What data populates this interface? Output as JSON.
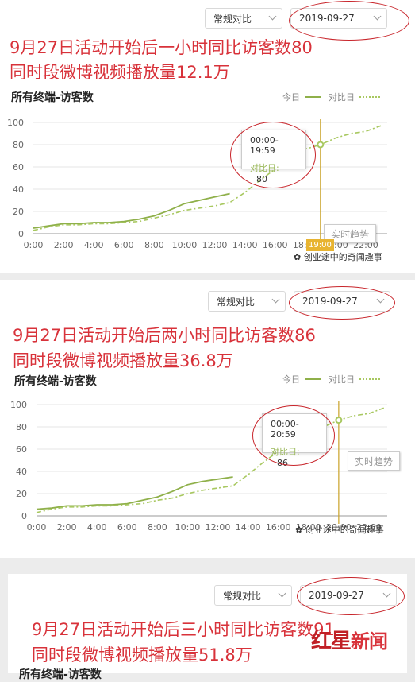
{
  "panels": [
    {
      "compare_select": "常规对比",
      "date_select": "2019-09-27",
      "headline1": "9月27日活动开始后一小时同比访客数80",
      "headline2": "同时段微博视频播放量12.1万",
      "chart_title": "所有终端-访客数",
      "legend_today": "今日",
      "legend_compare": "对比日",
      "tooltip_time": "00:00-19:59",
      "tooltip_label": "对比日:",
      "tooltip_value": "80",
      "realtime_button": "实时趋势",
      "cursor_label": "19:00",
      "watermark": "创业途中的奇闻趣事"
    },
    {
      "compare_select": "常规对比",
      "date_select": "2019-09-27",
      "headline1": "9月27日活动开始后两小时同比访客数86",
      "headline2": "同时段微博视频播放量36.8万",
      "chart_title": "所有终端-访客数",
      "legend_today": "今日",
      "legend_compare": "对比日",
      "tooltip_time": "00:00-20:59",
      "tooltip_label": "对比日:",
      "tooltip_value": "86",
      "realtime_button": "实时趋势",
      "watermark": "创业途中的奇闻趣事"
    },
    {
      "compare_select": "常规对比",
      "date_select": "2019-09-27",
      "headline1": "9月27日活动开始后三小时同比访客数91",
      "headline2": "同时段微博视频播放量51.8万",
      "chart_title": "所有终端-访客数"
    }
  ],
  "brand_logo": {
    "part1": "红",
    "part2": "星",
    "part3": "新闻"
  },
  "colors": {
    "today": "#8fb04a",
    "compare": "#a8c860",
    "headline": "#d8323a",
    "oval": "#c8252b",
    "cursor": "#c9a227"
  },
  "chart_data": [
    {
      "type": "line",
      "title": "所有终端-访客数",
      "x_ticks": [
        "0:00",
        "2:00",
        "4:00",
        "6:00",
        "8:00",
        "10:00",
        "12:00",
        "14:00",
        "16:00",
        "18:00",
        "20:00",
        "22:00"
      ],
      "y_ticks": [
        0,
        20,
        40,
        60,
        80,
        100
      ],
      "ylim": [
        0,
        100
      ],
      "legend": "top-right",
      "series": [
        {
          "name": "今日",
          "style": "solid",
          "x": [
            0,
            1,
            2,
            3,
            4,
            5,
            6,
            7,
            8,
            9,
            10,
            11,
            12,
            13
          ],
          "y": [
            5,
            7,
            9,
            9,
            10,
            10,
            11,
            13,
            16,
            21,
            27,
            30,
            33,
            36
          ]
        },
        {
          "name": "对比日",
          "style": "dashed",
          "x": [
            0,
            1,
            2,
            3,
            4,
            5,
            6,
            7,
            8,
            9,
            10,
            11,
            12,
            13,
            14,
            15,
            16,
            17,
            18,
            19,
            20,
            21,
            22,
            23
          ],
          "y": [
            3,
            6,
            8,
            8,
            9,
            9,
            10,
            11,
            14,
            17,
            21,
            23,
            25,
            28,
            37,
            48,
            58,
            68,
            76,
            80,
            86,
            90,
            92,
            97
          ]
        }
      ],
      "cursor_x": 19
    },
    {
      "type": "line",
      "title": "所有终端-访客数",
      "x_ticks": [
        "0:00",
        "2:00",
        "4:00",
        "6:00",
        "8:00",
        "10:00",
        "12:00",
        "14:00",
        "16:00",
        "18:00",
        "20:00",
        "22:00"
      ],
      "y_ticks": [
        0,
        20,
        40,
        60,
        80,
        100
      ],
      "ylim": [
        0,
        100
      ],
      "legend": "top-right",
      "series": [
        {
          "name": "今日",
          "style": "solid",
          "x": [
            0,
            1,
            2,
            3,
            4,
            5,
            6,
            7,
            8,
            9,
            10,
            11,
            12,
            13
          ],
          "y": [
            6,
            7,
            9,
            9,
            10,
            10,
            11,
            14,
            17,
            22,
            28,
            31,
            33,
            35
          ]
        },
        {
          "name": "对比日",
          "style": "dashed",
          "x": [
            0,
            1,
            2,
            3,
            4,
            5,
            6,
            7,
            8,
            9,
            10,
            11,
            12,
            13,
            14,
            15,
            16,
            17,
            18,
            19,
            20,
            21,
            22,
            23
          ],
          "y": [
            3,
            6,
            8,
            8,
            9,
            9,
            10,
            11,
            14,
            16,
            20,
            23,
            25,
            27,
            37,
            48,
            58,
            68,
            76,
            80,
            86,
            90,
            92,
            97
          ]
        }
      ],
      "cursor_x": 20
    }
  ]
}
